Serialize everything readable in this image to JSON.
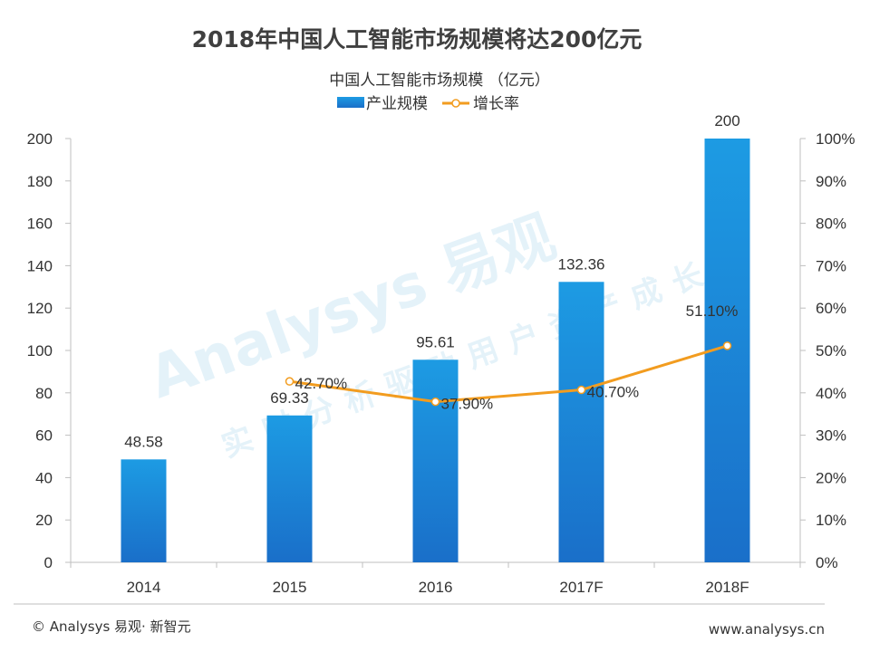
{
  "chart_data": {
    "type": "bar",
    "title": "2018年中国人工智能市场规模将达200亿元",
    "subtitle": "中国人工智能市场规模 （亿元）",
    "categories": [
      "2014",
      "2015",
      "2016",
      "2017F",
      "2018F"
    ],
    "series": [
      {
        "name": "产业规模",
        "type": "bar",
        "axis": "left",
        "values": [
          48.58,
          69.33,
          95.61,
          132.36,
          200
        ],
        "labels": [
          "48.58",
          "69.33",
          "95.61",
          "132.36",
          "200"
        ],
        "color": "#1a82d6"
      },
      {
        "name": "增长率",
        "type": "line",
        "axis": "right",
        "values": [
          null,
          42.7,
          37.9,
          40.7,
          51.1
        ],
        "labels": [
          "",
          "42.70%",
          "37.90%",
          "40.70%",
          "51.10%"
        ],
        "color": "#f29c1f"
      }
    ],
    "y_left": {
      "min": 0,
      "max": 200,
      "step": 20,
      "ticks": [
        "0",
        "20",
        "40",
        "60",
        "80",
        "100",
        "120",
        "140",
        "160",
        "180",
        "200"
      ]
    },
    "y_right": {
      "min": 0,
      "max": 100,
      "step": 10,
      "ticks": [
        "0%",
        "10%",
        "20%",
        "30%",
        "40%",
        "50%",
        "60%",
        "70%",
        "80%",
        "90%",
        "100%"
      ]
    },
    "legend_position": "top-center",
    "grid": false
  },
  "watermark": {
    "brand": "Analysys 易观",
    "slogan": "实时分析驱动用户资产成长"
  },
  "footer": {
    "left": "© Analysys 易观· 新智元",
    "right": "www.analysys.cn"
  }
}
